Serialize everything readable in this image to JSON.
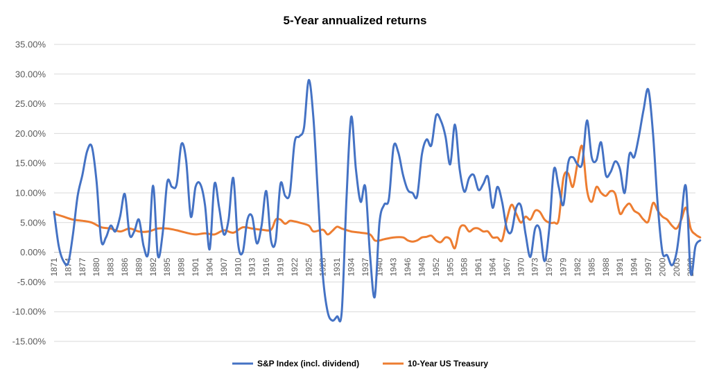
{
  "chart_data": {
    "type": "line",
    "title": "5-Year annualized returns",
    "xlabel": "",
    "ylabel": "",
    "ylim": [
      -0.15,
      0.35
    ],
    "y_ticks": [
      -0.15,
      -0.1,
      -0.05,
      0.0,
      0.05,
      0.1,
      0.15,
      0.2,
      0.25,
      0.3,
      0.35
    ],
    "y_tick_labels": [
      "-15.00%",
      "-10.00%",
      "-5.00%",
      "0.00%",
      "5.00%",
      "10.00%",
      "15.00%",
      "20.00%",
      "25.00%",
      "30.00%",
      "35.00%"
    ],
    "xlim": [
      1871,
      2007
    ],
    "x_tick_labels": [
      "1871",
      "1874",
      "1877",
      "1880",
      "1883",
      "1886",
      "1889",
      "1892",
      "1895",
      "1898",
      "1901",
      "1904",
      "1907",
      "1910",
      "1913",
      "1916",
      "1919",
      "1922",
      "1925",
      "1928",
      "1931",
      "1934",
      "1937",
      "1940",
      "1943",
      "1946",
      "1949",
      "1952",
      "1955",
      "1958",
      "1961",
      "1964",
      "1967",
      "1970",
      "1973",
      "1976",
      "1979",
      "1982",
      "1985",
      "1988",
      "1991",
      "1994",
      "1997",
      "2000",
      "2003",
      "2006"
    ],
    "grid": true,
    "legend": "bottom",
    "series": [
      {
        "name": "S&P Index (incl. dividend)",
        "color": "#4472C4",
        "points": [
          [
            1871,
            0.068
          ],
          [
            1872,
            0.01
          ],
          [
            1873,
            -0.015
          ],
          [
            1874,
            -0.018
          ],
          [
            1875,
            0.03
          ],
          [
            1876,
            0.095
          ],
          [
            1877,
            0.13
          ],
          [
            1878,
            0.17
          ],
          [
            1879,
            0.178
          ],
          [
            1880,
            0.12
          ],
          [
            1881,
            0.02
          ],
          [
            1882,
            0.025
          ],
          [
            1883,
            0.045
          ],
          [
            1884,
            0.035
          ],
          [
            1885,
            0.06
          ],
          [
            1886,
            0.098
          ],
          [
            1887,
            0.03
          ],
          [
            1888,
            0.035
          ],
          [
            1889,
            0.055
          ],
          [
            1890,
            0.01
          ],
          [
            1891,
            0.0
          ],
          [
            1892,
            0.112
          ],
          [
            1893,
            -0.005
          ],
          [
            1894,
            0.03
          ],
          [
            1895,
            0.118
          ],
          [
            1896,
            0.11
          ],
          [
            1897,
            0.115
          ],
          [
            1898,
            0.182
          ],
          [
            1899,
            0.155
          ],
          [
            1900,
            0.06
          ],
          [
            1901,
            0.11
          ],
          [
            1902,
            0.115
          ],
          [
            1903,
            0.08
          ],
          [
            1904,
            0.005
          ],
          [
            1905,
            0.115
          ],
          [
            1906,
            0.075
          ],
          [
            1907,
            0.03
          ],
          [
            1908,
            0.055
          ],
          [
            1909,
            0.125
          ],
          [
            1910,
            0.015
          ],
          [
            1911,
            0.0
          ],
          [
            1912,
            0.055
          ],
          [
            1913,
            0.06
          ],
          [
            1914,
            0.015
          ],
          [
            1915,
            0.045
          ],
          [
            1916,
            0.103
          ],
          [
            1917,
            0.02
          ],
          [
            1918,
            0.02
          ],
          [
            1919,
            0.115
          ],
          [
            1920,
            0.095
          ],
          [
            1921,
            0.1
          ],
          [
            1922,
            0.185
          ],
          [
            1923,
            0.195
          ],
          [
            1924,
            0.21
          ],
          [
            1925,
            0.29
          ],
          [
            1926,
            0.225
          ],
          [
            1927,
            0.09
          ],
          [
            1928,
            -0.04
          ],
          [
            1929,
            -0.1
          ],
          [
            1930,
            -0.115
          ],
          [
            1931,
            -0.108
          ],
          [
            1932,
            -0.1
          ],
          [
            1933,
            0.09
          ],
          [
            1934,
            0.228
          ],
          [
            1935,
            0.14
          ],
          [
            1936,
            0.085
          ],
          [
            1937,
            0.11
          ],
          [
            1938,
            -0.005
          ],
          [
            1939,
            -0.075
          ],
          [
            1940,
            0.05
          ],
          [
            1941,
            0.08
          ],
          [
            1942,
            0.09
          ],
          [
            1943,
            0.178
          ],
          [
            1944,
            0.168
          ],
          [
            1945,
            0.13
          ],
          [
            1946,
            0.105
          ],
          [
            1947,
            0.1
          ],
          [
            1948,
            0.095
          ],
          [
            1949,
            0.165
          ],
          [
            1950,
            0.19
          ],
          [
            1951,
            0.18
          ],
          [
            1952,
            0.23
          ],
          [
            1953,
            0.222
          ],
          [
            1954,
            0.195
          ],
          [
            1955,
            0.148
          ],
          [
            1956,
            0.215
          ],
          [
            1957,
            0.14
          ],
          [
            1958,
            0.102
          ],
          [
            1959,
            0.125
          ],
          [
            1960,
            0.13
          ],
          [
            1961,
            0.105
          ],
          [
            1962,
            0.115
          ],
          [
            1963,
            0.127
          ],
          [
            1964,
            0.075
          ],
          [
            1965,
            0.11
          ],
          [
            1966,
            0.085
          ],
          [
            1967,
            0.04
          ],
          [
            1968,
            0.035
          ],
          [
            1969,
            0.075
          ],
          [
            1970,
            0.078
          ],
          [
            1971,
            0.03
          ],
          [
            1972,
            -0.008
          ],
          [
            1973,
            0.04
          ],
          [
            1974,
            0.038
          ],
          [
            1975,
            -0.015
          ],
          [
            1976,
            0.04
          ],
          [
            1977,
            0.14
          ],
          [
            1978,
            0.11
          ],
          [
            1979,
            0.08
          ],
          [
            1980,
            0.15
          ],
          [
            1981,
            0.16
          ],
          [
            1982,
            0.148
          ],
          [
            1983,
            0.15
          ],
          [
            1984,
            0.222
          ],
          [
            1985,
            0.16
          ],
          [
            1986,
            0.155
          ],
          [
            1987,
            0.185
          ],
          [
            1988,
            0.13
          ],
          [
            1989,
            0.135
          ],
          [
            1990,
            0.153
          ],
          [
            1991,
            0.14
          ],
          [
            1992,
            0.1
          ],
          [
            1993,
            0.165
          ],
          [
            1994,
            0.16
          ],
          [
            1995,
            0.195
          ],
          [
            1996,
            0.24
          ],
          [
            1997,
            0.274
          ],
          [
            1998,
            0.2
          ],
          [
            1999,
            0.08
          ],
          [
            2000,
            0.0
          ],
          [
            2001,
            -0.005
          ],
          [
            2002,
            -0.022
          ],
          [
            2003,
            0.0
          ],
          [
            2004,
            0.06
          ],
          [
            2005,
            0.11
          ],
          [
            2006,
            -0.035
          ],
          [
            2007,
            0.01
          ],
          [
            2008,
            0.02
          ]
        ]
      },
      {
        "name": "10-Year US Treasury",
        "color": "#ED7D31",
        "points": [
          [
            1871,
            0.065
          ],
          [
            1873,
            0.06
          ],
          [
            1875,
            0.055
          ],
          [
            1877,
            0.053
          ],
          [
            1879,
            0.05
          ],
          [
            1881,
            0.042
          ],
          [
            1883,
            0.04
          ],
          [
            1885,
            0.035
          ],
          [
            1887,
            0.04
          ],
          [
            1889,
            0.035
          ],
          [
            1891,
            0.035
          ],
          [
            1893,
            0.04
          ],
          [
            1895,
            0.04
          ],
          [
            1897,
            0.037
          ],
          [
            1899,
            0.033
          ],
          [
            1901,
            0.03
          ],
          [
            1903,
            0.032
          ],
          [
            1905,
            0.03
          ],
          [
            1907,
            0.037
          ],
          [
            1909,
            0.033
          ],
          [
            1911,
            0.042
          ],
          [
            1913,
            0.04
          ],
          [
            1915,
            0.038
          ],
          [
            1917,
            0.038
          ],
          [
            1918,
            0.055
          ],
          [
            1919,
            0.055
          ],
          [
            1920,
            0.048
          ],
          [
            1921,
            0.053
          ],
          [
            1922,
            0.052
          ],
          [
            1923,
            0.05
          ],
          [
            1925,
            0.045
          ],
          [
            1926,
            0.035
          ],
          [
            1928,
            0.038
          ],
          [
            1929,
            0.03
          ],
          [
            1930,
            0.036
          ],
          [
            1931,
            0.043
          ],
          [
            1932,
            0.04
          ],
          [
            1934,
            0.035
          ],
          [
            1936,
            0.033
          ],
          [
            1938,
            0.03
          ],
          [
            1939,
            0.02
          ],
          [
            1940,
            0.02
          ],
          [
            1941,
            0.022
          ],
          [
            1943,
            0.025
          ],
          [
            1945,
            0.025
          ],
          [
            1946,
            0.02
          ],
          [
            1947,
            0.018
          ],
          [
            1948,
            0.02
          ],
          [
            1949,
            0.025
          ],
          [
            1950,
            0.026
          ],
          [
            1951,
            0.028
          ],
          [
            1952,
            0.02
          ],
          [
            1953,
            0.017
          ],
          [
            1954,
            0.025
          ],
          [
            1955,
            0.022
          ],
          [
            1956,
            0.007
          ],
          [
            1957,
            0.04
          ],
          [
            1958,
            0.045
          ],
          [
            1959,
            0.035
          ],
          [
            1960,
            0.04
          ],
          [
            1961,
            0.04
          ],
          [
            1962,
            0.035
          ],
          [
            1963,
            0.035
          ],
          [
            1964,
            0.025
          ],
          [
            1965,
            0.025
          ],
          [
            1966,
            0.02
          ],
          [
            1967,
            0.055
          ],
          [
            1968,
            0.08
          ],
          [
            1969,
            0.065
          ],
          [
            1970,
            0.05
          ],
          [
            1971,
            0.06
          ],
          [
            1972,
            0.055
          ],
          [
            1973,
            0.07
          ],
          [
            1974,
            0.068
          ],
          [
            1975,
            0.055
          ],
          [
            1976,
            0.05
          ],
          [
            1977,
            0.05
          ],
          [
            1978,
            0.055
          ],
          [
            1979,
            0.125
          ],
          [
            1980,
            0.133
          ],
          [
            1981,
            0.11
          ],
          [
            1982,
            0.15
          ],
          [
            1983,
            0.178
          ],
          [
            1984,
            0.105
          ],
          [
            1985,
            0.085
          ],
          [
            1986,
            0.11
          ],
          [
            1987,
            0.1
          ],
          [
            1988,
            0.095
          ],
          [
            1989,
            0.103
          ],
          [
            1990,
            0.098
          ],
          [
            1991,
            0.065
          ],
          [
            1992,
            0.075
          ],
          [
            1993,
            0.082
          ],
          [
            1994,
            0.07
          ],
          [
            1995,
            0.065
          ],
          [
            1996,
            0.055
          ],
          [
            1997,
            0.052
          ],
          [
            1998,
            0.083
          ],
          [
            1999,
            0.07
          ],
          [
            2000,
            0.06
          ],
          [
            2001,
            0.055
          ],
          [
            2002,
            0.045
          ],
          [
            2003,
            0.04
          ],
          [
            2004,
            0.055
          ],
          [
            2005,
            0.075
          ],
          [
            2006,
            0.04
          ],
          [
            2007,
            0.03
          ],
          [
            2008,
            0.025
          ]
        ]
      }
    ]
  }
}
